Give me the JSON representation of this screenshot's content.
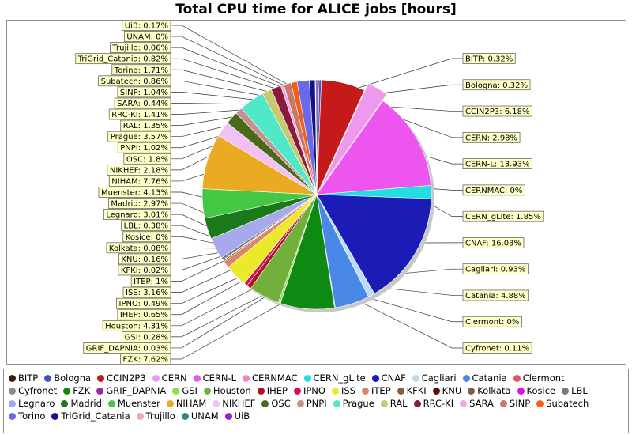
{
  "chart_data": {
    "type": "pie",
    "title": "Total CPU time for ALICE jobs [hours]",
    "legend_position": "bottom",
    "slices": [
      {
        "name": "BITP",
        "value": 0.32,
        "label": "BITP: 0.32%",
        "color": "#3d1b0f",
        "side": "right"
      },
      {
        "name": "Bologna",
        "value": 0.32,
        "label": "Bologna: 0.32%",
        "color": "#3a55c8",
        "side": "right"
      },
      {
        "name": "CCIN2P3",
        "value": 6.18,
        "label": "CCIN2P3: 6.18%",
        "color": "#c41a1a",
        "side": "right"
      },
      {
        "name": "CERN",
        "value": 2.98,
        "label": "CERN: 2.98%",
        "color": "#ee99ee",
        "side": "right",
        "explode": true
      },
      {
        "name": "CERN-L",
        "value": 13.93,
        "label": "CERN-L: 13.93%",
        "color": "#ee55ee",
        "side": "right"
      },
      {
        "name": "CERNMAC",
        "value": 0.0,
        "label": "CERNMAC: 0%",
        "color": "#f088c8",
        "side": "right"
      },
      {
        "name": "CERN_gLite",
        "value": 1.85,
        "label": "CERN_gLite: 1.85%",
        "color": "#22dde2",
        "side": "right"
      },
      {
        "name": "CNAF",
        "value": 16.03,
        "label": "CNAF: 16.03%",
        "color": "#1b1bb5",
        "side": "right"
      },
      {
        "name": "Cagliari",
        "value": 0.93,
        "label": "Cagliari: 0.93%",
        "color": "#b8dcf0",
        "side": "right"
      },
      {
        "name": "Catania",
        "value": 4.88,
        "label": "Catania: 4.88%",
        "color": "#4a88e8",
        "side": "right"
      },
      {
        "name": "Clermont",
        "value": 0.0,
        "label": "Clermont: 0%",
        "color": "#e85068",
        "side": "right"
      },
      {
        "name": "Cyfronet",
        "value": 0.11,
        "label": "Cyfronet: 0.11%",
        "color": "#8a8a8a",
        "side": "right"
      },
      {
        "name": "FZK",
        "value": 7.62,
        "label": "FZK: 7.62%",
        "color": "#0e8a12",
        "side": "left"
      },
      {
        "name": "GRIF_DAPNIA",
        "value": 0.03,
        "label": "GRIF_DAPNIA: 0.03%",
        "color": "#9a2aa0",
        "side": "left"
      },
      {
        "name": "GSI",
        "value": 0.28,
        "label": "GSI: 0.28%",
        "color": "#8ae04a",
        "side": "left"
      },
      {
        "name": "Houston",
        "value": 4.31,
        "label": "Houston: 4.31%",
        "color": "#72b03c",
        "side": "left"
      },
      {
        "name": "IHEP",
        "value": 0.65,
        "label": "IHEP: 0.65%",
        "color": "#b01020",
        "side": "left"
      },
      {
        "name": "IPNO",
        "value": 0.49,
        "label": "IPNO: 0.49%",
        "color": "#d01058",
        "side": "left"
      },
      {
        "name": "ISS",
        "value": 3.16,
        "label": "ISS: 3.16%",
        "color": "#eaea2a",
        "side": "left"
      },
      {
        "name": "ITEP",
        "value": 1.0,
        "label": "ITEP: 1%",
        "color": "#d88868",
        "side": "left"
      },
      {
        "name": "KFKI",
        "value": 0.02,
        "label": "KFKI: 0.02%",
        "color": "#8a5a3a",
        "side": "left"
      },
      {
        "name": "KNU",
        "value": 0.16,
        "label": "KNU: 0.16%",
        "color": "#5a1010",
        "side": "left"
      },
      {
        "name": "Kolkata",
        "value": 0.08,
        "label": "Kolkata: 0.08%",
        "color": "#7a6040",
        "side": "left"
      },
      {
        "name": "Kosice",
        "value": 0.0,
        "label": "Kosice: 0%",
        "color": "#e010e0",
        "side": "left"
      },
      {
        "name": "LBL",
        "value": 0.38,
        "label": "LBL: 0.38%",
        "color": "#7a7a7a",
        "side": "left"
      },
      {
        "name": "Legnaro",
        "value": 3.01,
        "label": "Legnaro: 3.01%",
        "color": "#a8a8ee",
        "side": "left"
      },
      {
        "name": "Madrid",
        "value": 2.97,
        "label": "Madrid: 2.97%",
        "color": "#1a7a1a",
        "side": "left"
      },
      {
        "name": "Muenster",
        "value": 4.13,
        "label": "Muenster: 4.13%",
        "color": "#44c844",
        "side": "left"
      },
      {
        "name": "NIHAM",
        "value": 7.76,
        "label": "NIHAM: 7.76%",
        "color": "#eaaa22",
        "side": "left"
      },
      {
        "name": "NIKHEF",
        "value": 2.18,
        "label": "NIKHEF: 2.18%",
        "color": "#f2c0f2",
        "side": "left"
      },
      {
        "name": "OSC",
        "value": 1.8,
        "label": "OSC: 1.8%",
        "color": "#4a6a1a",
        "side": "left"
      },
      {
        "name": "PNPI",
        "value": 1.02,
        "label": "PNPI: 1.02%",
        "color": "#c49090",
        "side": "left"
      },
      {
        "name": "Prague",
        "value": 3.57,
        "label": "Prague: 3.57%",
        "color": "#50e8c8",
        "side": "left"
      },
      {
        "name": "RAL",
        "value": 1.35,
        "label": "RAL: 1.35%",
        "color": "#c8c870",
        "side": "left"
      },
      {
        "name": "RRC-KI",
        "value": 1.41,
        "label": "RRC-KI: 1.41%",
        "color": "#8a1a3a",
        "side": "left"
      },
      {
        "name": "SARA",
        "value": 0.44,
        "label": "SARA: 0.44%",
        "color": "#f0a8e0",
        "side": "left"
      },
      {
        "name": "SINP",
        "value": 1.04,
        "label": "SINP: 1.04%",
        "color": "#c87a6a",
        "side": "left"
      },
      {
        "name": "Subatech",
        "value": 0.86,
        "label": "Subatech: 0.86%",
        "color": "#f0601a",
        "side": "left"
      },
      {
        "name": "Torino",
        "value": 1.71,
        "label": "Torino: 1.71%",
        "color": "#6a6ae8",
        "side": "left"
      },
      {
        "name": "TriGrid_Catania",
        "value": 0.82,
        "label": "TriGrid_Catania: 0.82%",
        "color": "#12128a",
        "side": "left"
      },
      {
        "name": "Trujillo",
        "value": 0.06,
        "label": "Trujillo: 0.06%",
        "color": "#f0a8a8",
        "side": "left"
      },
      {
        "name": "UNAM",
        "value": 0.0,
        "label": "UNAM: 0%",
        "color": "#2a8a8a",
        "side": "left"
      },
      {
        "name": "UiB",
        "value": 0.17,
        "label": "UiB: 0.17%",
        "color": "#a01ad8",
        "side": "left"
      }
    ]
  }
}
